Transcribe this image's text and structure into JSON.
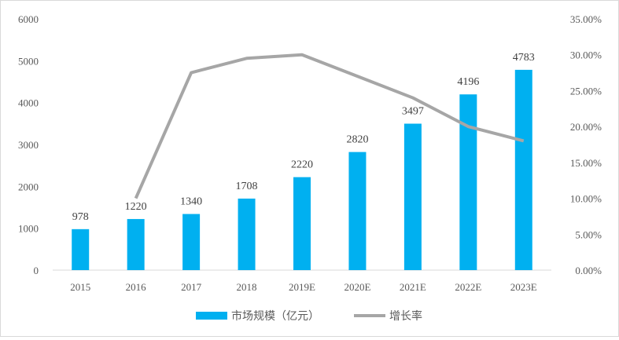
{
  "chart_data": {
    "type": "bar",
    "categories": [
      "2015",
      "2016",
      "2017",
      "2018",
      "2019E",
      "2020E",
      "2021E",
      "2022E",
      "2023E"
    ],
    "series": [
      {
        "name": "市场规模（亿元）",
        "type": "bar",
        "axis": "left",
        "color": "#00B0F0",
        "values": [
          978,
          1220,
          1340,
          1708,
          2220,
          2820,
          3497,
          4196,
          4783
        ],
        "labels": [
          "978",
          "1220",
          "1340",
          "1708",
          "2220",
          "2820",
          "3497",
          "4196",
          "4783"
        ]
      },
      {
        "name": "增长率",
        "type": "line",
        "axis": "right",
        "color": "#A6A6A6",
        "values": [
          null,
          0.1,
          0.275,
          0.295,
          0.3,
          0.27,
          0.24,
          0.2,
          0.18
        ]
      }
    ],
    "y_left": {
      "ylim": [
        0,
        6000
      ],
      "ticks": [
        "0",
        "1000",
        "2000",
        "3000",
        "4000",
        "5000",
        "6000"
      ]
    },
    "y_right": {
      "ylim": [
        0,
        0.35
      ],
      "ticks": [
        "0.00%",
        "5.00%",
        "10.00%",
        "15.00%",
        "20.00%",
        "25.00%",
        "30.00%",
        "35.00%"
      ]
    },
    "grid": false,
    "legend": "bottom"
  }
}
